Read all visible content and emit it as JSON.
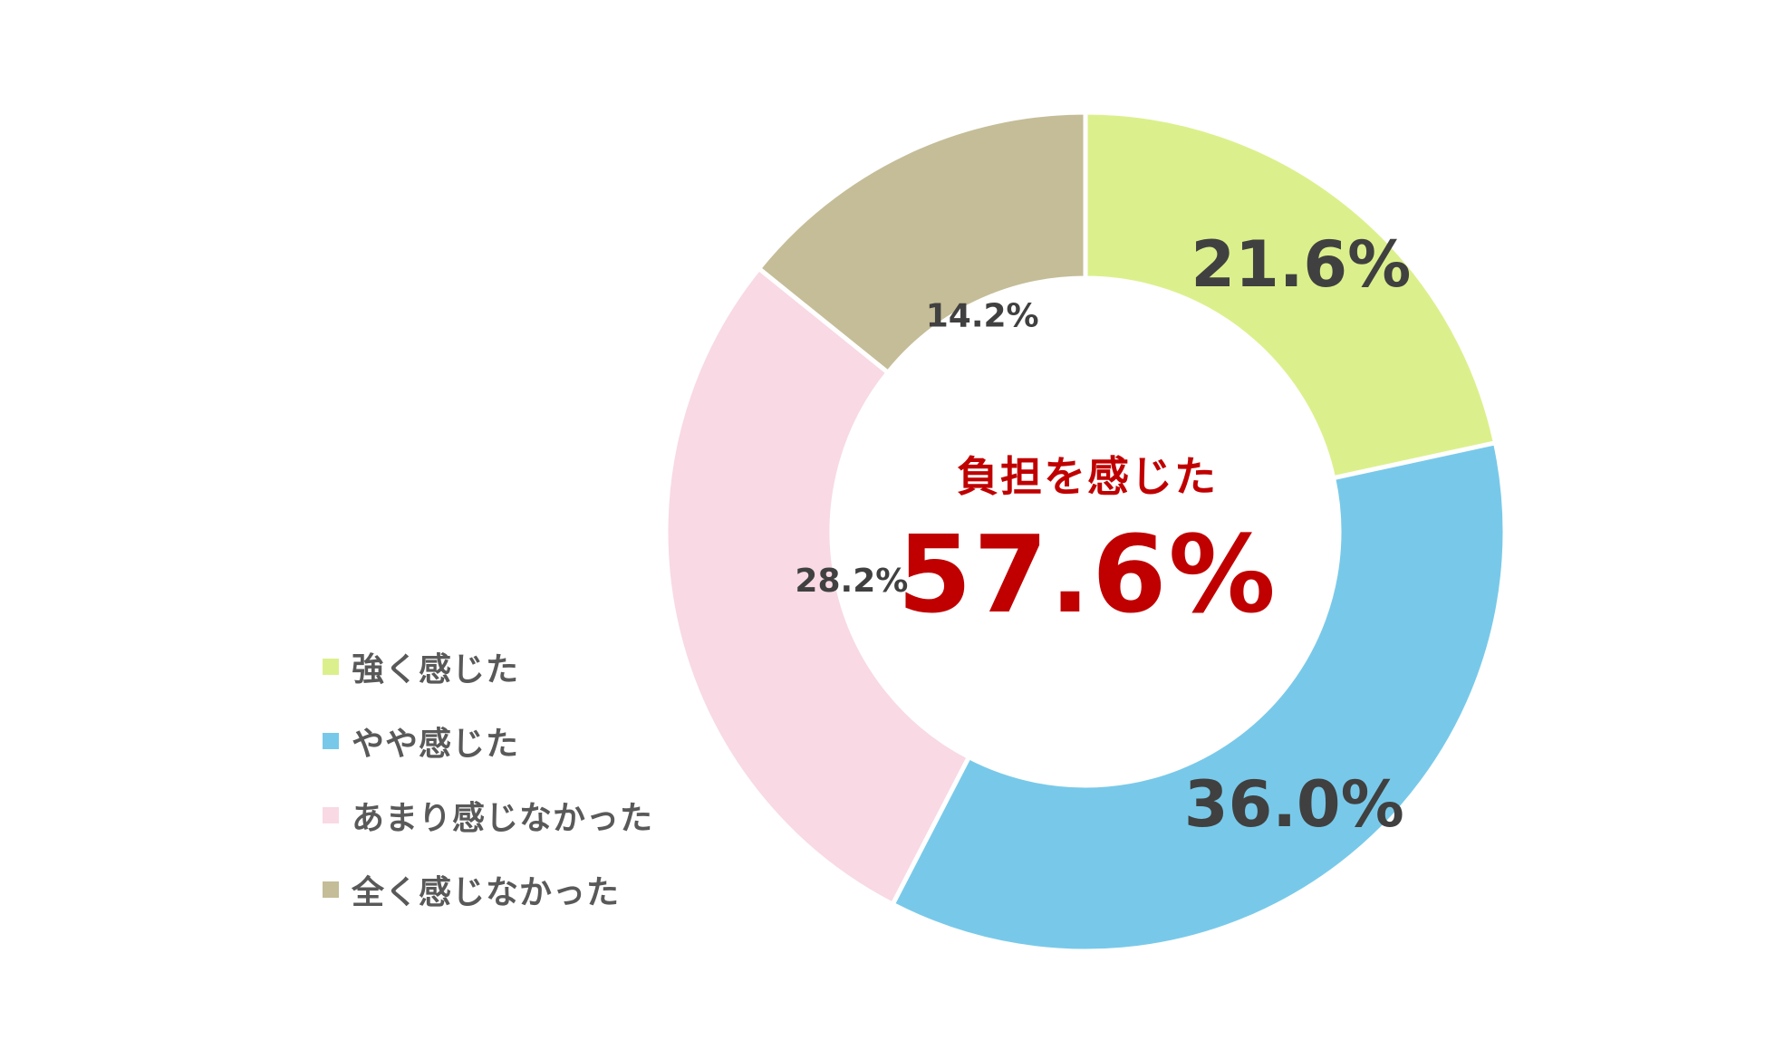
{
  "chart_data": {
    "type": "pie",
    "donut": true,
    "title": "",
    "categories": [
      "強く感じた",
      "やや感じた",
      "あまり感じなかった",
      "全く感じなかった"
    ],
    "values": [
      21.6,
      36.0,
      28.2,
      14.2
    ],
    "data_labels": [
      "21.6%",
      "36.0%",
      "28.2%",
      "14.2%"
    ],
    "colors": [
      "#dbf08c",
      "#78c9e9",
      "#f8d9e4",
      "#c4bd97"
    ],
    "label_color": "#404040",
    "legend_position": "left-bottom",
    "center_annotation": {
      "title": "負担を感じた",
      "value": "57.6%",
      "color": "#c00000"
    }
  }
}
